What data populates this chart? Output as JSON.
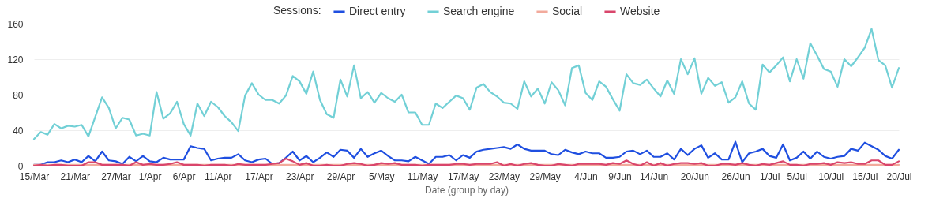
{
  "chart_data": {
    "type": "line",
    "xlabel": "Date (group by day)",
    "legend_title": "Sessions:",
    "legend": "top",
    "grid": "y",
    "x": [
      "--03-15",
      "--03-16",
      "--03-17",
      "--03-18",
      "--03-19",
      "--03-20",
      "--03-21",
      "--03-22",
      "--03-23",
      "--03-24",
      "--03-25",
      "--03-26",
      "--03-27",
      "--03-28",
      "--03-29",
      "--03-30",
      "--03-31",
      "--04-01",
      "--04-02",
      "--04-03",
      "--04-04",
      "--04-05",
      "--04-06",
      "--04-07",
      "--04-08",
      "--04-09",
      "--04-10",
      "--04-11",
      "--04-12",
      "--04-13",
      "--04-14",
      "--04-15",
      "--04-16",
      "--04-17",
      "--04-18",
      "--04-19",
      "--04-20",
      "--04-21",
      "--04-22",
      "--04-23",
      "--04-24",
      "--04-25",
      "--04-26",
      "--04-27",
      "--04-28",
      "--04-29",
      "--04-30",
      "--05-01",
      "--05-02",
      "--05-03",
      "--05-04",
      "--05-05",
      "--05-06",
      "--05-07",
      "--05-08",
      "--05-09",
      "--05-10",
      "--05-11",
      "--05-12",
      "--05-13",
      "--05-14",
      "--05-15",
      "--05-16",
      "--05-17",
      "--05-18",
      "--05-19",
      "--05-20",
      "--05-21",
      "--05-22",
      "--05-23",
      "--05-24",
      "--05-25",
      "--05-26",
      "--05-27",
      "--05-28",
      "--05-29",
      "--05-30",
      "--05-31",
      "--06-01",
      "--06-02",
      "--06-03",
      "--06-04",
      "--06-05",
      "--06-06",
      "--06-07",
      "--06-08",
      "--06-09",
      "--06-10",
      "--06-11",
      "--06-12",
      "--06-13",
      "--06-14",
      "--06-15",
      "--06-16",
      "--06-17",
      "--06-18",
      "--06-19",
      "--06-20",
      "--06-21",
      "--06-22",
      "--06-23",
      "--06-24",
      "--06-25",
      "--06-26",
      "--06-27",
      "--06-28",
      "--06-29",
      "--06-30",
      "--07-01",
      "--07-02",
      "--07-03",
      "--07-04",
      "--07-05",
      "--07-06",
      "--07-07",
      "--07-08",
      "--07-09",
      "--07-10",
      "--07-11",
      "--07-12",
      "--07-13",
      "--07-14",
      "--07-15",
      "--07-16",
      "--07-17",
      "--07-18",
      "--07-19",
      "--07-20"
    ],
    "xlim": [
      "--03-15",
      "--07-20"
    ],
    "xticks": [
      {
        "value": "--03-15",
        "label": "15/Mar"
      },
      {
        "value": "--03-21",
        "label": "21/Mar"
      },
      {
        "value": "--03-27",
        "label": "27/Mar"
      },
      {
        "value": "--04-01",
        "label": "1/Apr"
      },
      {
        "value": "--04-06",
        "label": "6/Apr"
      },
      {
        "value": "--04-11",
        "label": "11/Apr"
      },
      {
        "value": "--04-17",
        "label": "17/Apr"
      },
      {
        "value": "--04-23",
        "label": "23/Apr"
      },
      {
        "value": "--04-29",
        "label": "29/Apr"
      },
      {
        "value": "--05-05",
        "label": "5/May"
      },
      {
        "value": "--05-11",
        "label": "11/May"
      },
      {
        "value": "--05-17",
        "label": "17/May"
      },
      {
        "value": "--05-23",
        "label": "23/May"
      },
      {
        "value": "--05-29",
        "label": "29/May"
      },
      {
        "value": "--06-04",
        "label": "4/Jun"
      },
      {
        "value": "--06-09",
        "label": "9/Jun"
      },
      {
        "value": "--06-14",
        "label": "14/Jun"
      },
      {
        "value": "--06-20",
        "label": "20/Jun"
      },
      {
        "value": "--06-26",
        "label": "26/Jun"
      },
      {
        "value": "--07-01",
        "label": "1/Jul"
      },
      {
        "value": "--07-05",
        "label": "5/Jul"
      },
      {
        "value": "--07-10",
        "label": "10/Jul"
      },
      {
        "value": "--07-15",
        "label": "15/Jul"
      },
      {
        "value": "--07-20",
        "label": "20/Jul"
      }
    ],
    "ylim": [
      0,
      160
    ],
    "yticks": [
      0,
      40,
      80,
      120,
      160
    ],
    "series": [
      {
        "name": "Direct entry",
        "color": "#1f4fe0",
        "values": [
          1,
          1,
          4,
          4,
          6,
          4,
          7,
          4,
          11,
          5,
          16,
          6,
          5,
          2,
          10,
          5,
          11,
          5,
          4,
          9,
          7,
          7,
          7,
          22,
          20,
          19,
          6,
          8,
          9,
          9,
          13,
          6,
          4,
          7,
          8,
          2,
          3,
          9,
          16,
          6,
          11,
          4,
          9,
          15,
          10,
          18,
          17,
          9,
          19,
          10,
          14,
          17,
          11,
          6,
          6,
          5,
          10,
          6,
          2,
          10,
          10,
          12,
          6,
          12,
          9,
          16,
          18,
          19,
          20,
          21,
          19,
          24,
          19,
          17,
          17,
          17,
          13,
          12,
          18,
          15,
          13,
          16,
          14,
          14,
          9,
          9,
          10,
          16,
          17,
          13,
          17,
          10,
          10,
          14,
          7,
          19,
          12,
          19,
          23,
          9,
          14,
          7,
          7,
          27,
          4,
          14,
          16,
          19,
          11,
          9,
          24,
          6,
          9,
          16,
          8,
          16,
          10,
          8,
          10,
          11,
          19,
          17,
          26,
          22,
          18,
          11,
          8,
          18
        ]
      },
      {
        "name": "Search engine",
        "color": "#72d0d6",
        "values": [
          30,
          38,
          35,
          47,
          42,
          45,
          44,
          46,
          33,
          55,
          77,
          65,
          42,
          54,
          52,
          34,
          36,
          34,
          83,
          53,
          59,
          72,
          47,
          34,
          70,
          56,
          72,
          66,
          56,
          49,
          39,
          79,
          93,
          80,
          74,
          74,
          70,
          79,
          101,
          95,
          81,
          106,
          74,
          58,
          54,
          97,
          78,
          113,
          76,
          83,
          71,
          82,
          76,
          72,
          80,
          60,
          60,
          46,
          46,
          70,
          65,
          72,
          79,
          76,
          63,
          88,
          92,
          83,
          78,
          71,
          70,
          64,
          95,
          78,
          87,
          70,
          94,
          85,
          68,
          110,
          113,
          82,
          74,
          95,
          89,
          75,
          62,
          103,
          93,
          91,
          97,
          87,
          78,
          96,
          81,
          120,
          103,
          121,
          81,
          99,
          90,
          94,
          71,
          77,
          95,
          70,
          63,
          114,
          105,
          113,
          122,
          95,
          120,
          98,
          138,
          124,
          109,
          106,
          89,
          120,
          112,
          122,
          133,
          154,
          119,
          113,
          88,
          110
        ]
      },
      {
        "name": "Social",
        "color": "#f2aa9c",
        "values": [
          1,
          1,
          1,
          1,
          1,
          1,
          1,
          1,
          1,
          1,
          1,
          1,
          1,
          1,
          1,
          1,
          1,
          1,
          1,
          1,
          1,
          1,
          1,
          1,
          1,
          1,
          1,
          1,
          1,
          1,
          1,
          1,
          1,
          1,
          1,
          1,
          1,
          1,
          1,
          1,
          1,
          1,
          1,
          1,
          1,
          1,
          1,
          1,
          1,
          1,
          1,
          1,
          1,
          1,
          1,
          1,
          1,
          1,
          1,
          1,
          1,
          1,
          1,
          1,
          1,
          1,
          1,
          1,
          1,
          1,
          1,
          1,
          1,
          1,
          1,
          1,
          1,
          1,
          1,
          1,
          1,
          1,
          1,
          1,
          1,
          1,
          1,
          1,
          1,
          1,
          1,
          1,
          1,
          1,
          1,
          1,
          1,
          1,
          1,
          1,
          1,
          1,
          1,
          1,
          1,
          1,
          1,
          1,
          1,
          1,
          1,
          1,
          1,
          1,
          1,
          1,
          1,
          1,
          1,
          1,
          1,
          1,
          1,
          1,
          1,
          1,
          1,
          1
        ]
      },
      {
        "name": "Website",
        "color": "#d9456b",
        "values": [
          0,
          1,
          0,
          1,
          1,
          0,
          0,
          0,
          4,
          4,
          1,
          1,
          1,
          1,
          0,
          4,
          1,
          2,
          1,
          1,
          2,
          4,
          1,
          1,
          1,
          0,
          1,
          1,
          1,
          0,
          2,
          1,
          1,
          1,
          1,
          2,
          3,
          8,
          5,
          1,
          3,
          0,
          0,
          1,
          0,
          0,
          2,
          3,
          2,
          0,
          1,
          3,
          2,
          3,
          1,
          1,
          1,
          0,
          1,
          1,
          1,
          1,
          2,
          2,
          1,
          2,
          2,
          2,
          4,
          0,
          2,
          0,
          2,
          3,
          1,
          0,
          0,
          2,
          1,
          0,
          2,
          2,
          2,
          2,
          1,
          3,
          2,
          6,
          2,
          0,
          4,
          0,
          3,
          0,
          2,
          3,
          3,
          2,
          3,
          0,
          0,
          2,
          2,
          1,
          3,
          1,
          0,
          2,
          1,
          3,
          5,
          1,
          1,
          0,
          2,
          2,
          3,
          1,
          4,
          3,
          4,
          2,
          2,
          6,
          6,
          1,
          1,
          5
        ]
      }
    ]
  }
}
